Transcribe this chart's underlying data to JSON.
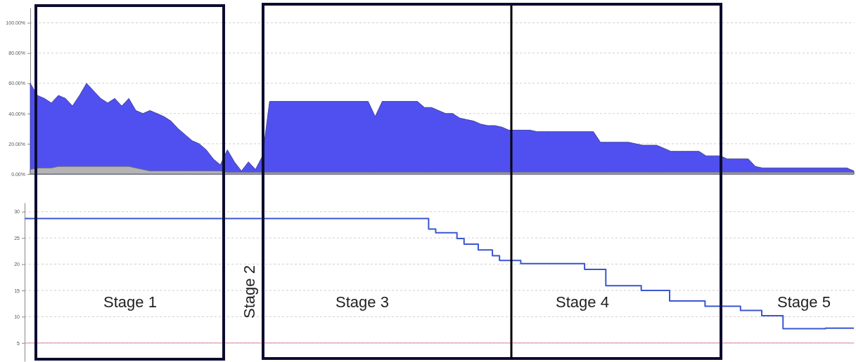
{
  "chart_data": [
    {
      "type": "area",
      "categories": [
        null,
        null,
        null,
        null,
        null,
        null,
        null,
        null,
        null,
        null,
        null,
        null,
        null,
        null,
        null,
        null,
        null,
        null,
        null,
        null,
        null,
        null,
        null,
        null,
        null,
        null,
        null,
        null,
        null,
        null,
        null,
        null,
        null,
        null,
        null,
        null,
        null,
        null,
        null,
        null,
        null,
        null,
        null,
        null,
        null,
        null,
        null,
        null,
        null,
        null,
        null,
        null,
        null,
        null,
        null,
        null,
        null,
        null,
        null,
        null,
        null,
        null,
        null,
        null,
        null,
        null,
        null,
        null,
        null,
        null,
        null,
        null,
        null,
        null,
        null,
        null,
        null,
        null,
        null,
        null,
        null,
        null,
        null,
        null,
        null,
        null,
        null,
        null,
        null,
        null,
        null,
        null,
        null,
        null,
        null,
        null,
        null,
        null,
        null,
        null,
        null,
        null,
        null,
        null,
        null,
        null,
        null,
        null,
        null,
        null,
        null,
        null,
        null,
        null,
        null,
        null,
        null,
        null
      ],
      "series": [
        {
          "color": "#5050f0",
          "values": [
            60,
            52,
            50,
            47,
            52,
            50,
            45,
            52,
            60,
            55,
            50,
            47,
            50,
            45,
            50,
            42,
            40,
            42,
            40,
            38,
            35,
            30,
            26,
            22,
            20,
            16,
            10,
            6,
            16,
            8,
            2,
            8,
            3,
            12,
            48,
            48,
            48,
            48,
            48,
            48,
            48,
            48,
            48,
            48,
            48,
            48,
            48,
            48,
            48,
            38,
            48,
            48,
            48,
            48,
            48,
            48,
            44,
            44,
            42,
            40,
            40,
            37,
            36,
            35,
            33,
            32,
            32,
            31,
            29,
            29,
            29,
            29,
            28,
            28,
            28,
            28,
            28,
            28,
            28,
            28,
            28,
            21,
            21,
            21,
            21,
            21,
            20,
            19,
            19,
            19,
            17,
            15,
            15,
            15,
            15,
            15,
            12,
            12,
            12,
            10,
            10,
            10,
            10,
            5,
            4,
            4,
            4,
            4,
            4,
            4,
            4,
            4,
            4,
            4,
            4,
            4,
            4,
            2
          ]
        },
        {
          "color": "#b4b4b4",
          "values": [
            3,
            4,
            4,
            4,
            5,
            5,
            5,
            5,
            5,
            5,
            5,
            5,
            5,
            5,
            5,
            4,
            3,
            2,
            2,
            2,
            2,
            2,
            2,
            2,
            2,
            2,
            2,
            2,
            1,
            1,
            1,
            1,
            1,
            1,
            1,
            1,
            1,
            1,
            1,
            1,
            1,
            1,
            1,
            1,
            1,
            1,
            1,
            1,
            1,
            1,
            1,
            1,
            1,
            1,
            1,
            1,
            1,
            1,
            1,
            1,
            1,
            1,
            1,
            1,
            1,
            1,
            1,
            1,
            1,
            1,
            1,
            1,
            1,
            1,
            1,
            1,
            1,
            1,
            1,
            1,
            1,
            1,
            1,
            1,
            1,
            1,
            1,
            1,
            1,
            1,
            1,
            1,
            1,
            1,
            1,
            1,
            1,
            1,
            1,
            1,
            1,
            1,
            1,
            1,
            1,
            1,
            1,
            1,
            1,
            1,
            1,
            1,
            1,
            1,
            1,
            1,
            1,
            1
          ]
        }
      ],
      "ylim": [
        0,
        110
      ],
      "yticks": [
        {
          "value": 0,
          "label": "0.00%"
        },
        {
          "value": 20,
          "label": "20.00%"
        },
        {
          "value": 40,
          "label": "40.00%"
        },
        {
          "value": 60,
          "label": "60.00%"
        },
        {
          "value": 80,
          "label": "80.00%"
        },
        {
          "value": 100,
          "label": "100.00%"
        }
      ],
      "grid": "y"
    },
    {
      "type": "step",
      "categories": [
        null,
        null,
        null,
        null,
        null,
        null,
        null,
        null,
        null,
        null,
        null,
        null,
        null,
        null,
        null,
        null,
        null,
        null,
        null,
        null,
        null,
        null,
        null,
        null,
        null,
        null,
        null,
        null,
        null,
        null,
        null,
        null,
        null,
        null,
        null,
        null,
        null,
        null,
        null,
        null,
        null,
        null,
        null,
        null,
        null,
        null,
        null,
        null,
        null,
        null,
        null,
        null,
        null,
        null,
        null,
        null,
        null,
        null,
        null,
        null,
        null,
        null,
        null,
        null,
        null,
        null,
        null,
        null,
        null,
        null,
        null,
        null,
        null,
        null,
        null,
        null,
        null,
        null,
        null,
        null,
        null,
        null,
        null,
        null,
        null,
        null,
        null,
        null,
        null,
        null,
        null,
        null,
        null,
        null,
        null,
        null,
        null,
        null,
        null,
        null,
        null,
        null,
        null,
        null,
        null,
        null,
        null,
        null,
        null,
        null,
        null,
        null,
        null,
        null,
        null,
        null,
        null,
        null
      ],
      "series": [
        {
          "color": "#3a56d0",
          "values": [
            28.7,
            28.7,
            28.7,
            28.7,
            28.7,
            28.7,
            28.7,
            28.7,
            28.7,
            28.7,
            28.7,
            28.7,
            28.7,
            28.7,
            28.7,
            28.7,
            28.7,
            28.7,
            28.7,
            28.7,
            28.7,
            28.7,
            28.7,
            28.7,
            28.7,
            28.7,
            28.7,
            28.7,
            28.7,
            28.7,
            28.7,
            28.7,
            28.7,
            28.7,
            28.7,
            28.7,
            28.7,
            28.7,
            28.7,
            28.7,
            28.7,
            28.7,
            28.7,
            28.7,
            28.7,
            28.7,
            28.7,
            28.7,
            28.7,
            28.7,
            28.7,
            28.7,
            28.7,
            28.7,
            28.7,
            28.7,
            28.7,
            26.7,
            26.0,
            26.0,
            26.0,
            24.9,
            23.8,
            23.8,
            22.7,
            22.7,
            21.6,
            20.7,
            20.7,
            20.7,
            20.1,
            20.1,
            20.1,
            20.1,
            20.1,
            20.1,
            20.1,
            20.1,
            20.1,
            19.0,
            19.0,
            19.0,
            15.9,
            15.9,
            15.9,
            15.9,
            15.9,
            15.0,
            15.0,
            15.0,
            15.0,
            13.0,
            13.0,
            13.0,
            13.0,
            13.0,
            12.0,
            12.0,
            12.0,
            12.0,
            12.0,
            11.2,
            11.2,
            11.2,
            10.2,
            10.2,
            10.2,
            7.7,
            7.7,
            7.7,
            7.7,
            7.7,
            7.7,
            7.8,
            7.8,
            7.8,
            7.8,
            7.8
          ]
        }
      ],
      "ylim": [
        1.5,
        31.7
      ],
      "yticks": [
        5,
        10,
        15,
        20,
        25,
        30
      ],
      "grid": "y",
      "ref_lines": [
        {
          "axis": "y",
          "value": 5,
          "color": "#e39ab8"
        }
      ],
      "annotations": [
        "Stage 1",
        "Stage 2",
        "Stage 3",
        "Stage 4",
        "Stage 5"
      ]
    }
  ]
}
